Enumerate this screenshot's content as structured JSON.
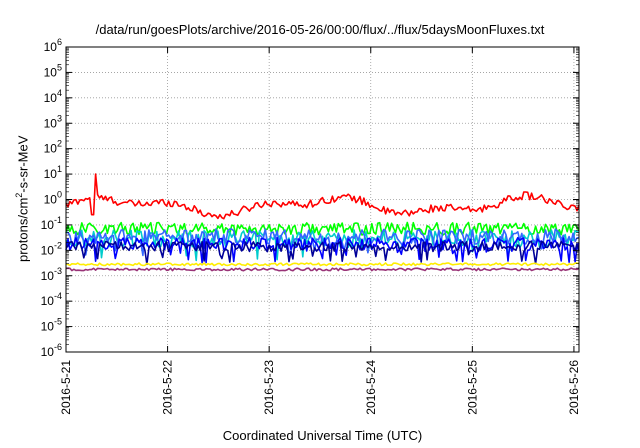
{
  "chart_data": {
    "type": "line",
    "title": "/data/run/goesPlots/archive/2016-05-26/00:00/flux/../flux/5daysMoonFluxes.txt",
    "xlabel": "Coordinated Universal Time (UTC)",
    "ylabel_parts": [
      "protons/cm",
      "2",
      "-s-sr-MeV"
    ],
    "x_ticks": [
      "2016-5-21",
      "2016-5-22",
      "2016-5-23",
      "2016-5-24",
      "2016-5-25",
      "2016-5-26"
    ],
    "x_range_days": [
      0,
      5.05
    ],
    "y_scale": "log",
    "y_ticks": [
      {
        "base": "10",
        "exp": "6"
      },
      {
        "base": "10",
        "exp": "5"
      },
      {
        "base": "10",
        "exp": "4"
      },
      {
        "base": "10",
        "exp": "3"
      },
      {
        "base": "10",
        "exp": "2"
      },
      {
        "base": "10",
        "exp": "1"
      },
      {
        "base": "10",
        "exp": "0"
      },
      {
        "base": "10",
        "exp": "-1"
      },
      {
        "base": "10",
        "exp": "-2"
      },
      {
        "base": "10",
        "exp": "-3"
      },
      {
        "base": "10",
        "exp": "-4"
      },
      {
        "base": "10",
        "exp": "-5"
      },
      {
        "base": "10",
        "exp": "-6"
      }
    ],
    "ylim_log10": [
      -6,
      6
    ],
    "grid": true,
    "series": [
      {
        "color": "#ff0000",
        "level_log10": -0.25,
        "noise": 0.15,
        "spike_at_day": 0.28,
        "spike_log10": 1.0
      },
      {
        "color": "#00ff00",
        "level_log10": -1.15,
        "noise": 0.25
      },
      {
        "color": "#00cccc",
        "level_log10": -1.55,
        "noise": 0.35
      },
      {
        "color": "#3366ff",
        "level_log10": -1.45,
        "noise": 0.3
      },
      {
        "color": "#0000ff",
        "level_log10": -1.75,
        "noise": 0.25
      },
      {
        "color": "#000099",
        "level_log10": -1.85,
        "noise": 0.2
      },
      {
        "color": "#ffee00",
        "level_log10": -2.55,
        "noise": 0.05
      },
      {
        "color": "#993377",
        "level_log10": -2.75,
        "noise": 0.05
      }
    ]
  }
}
